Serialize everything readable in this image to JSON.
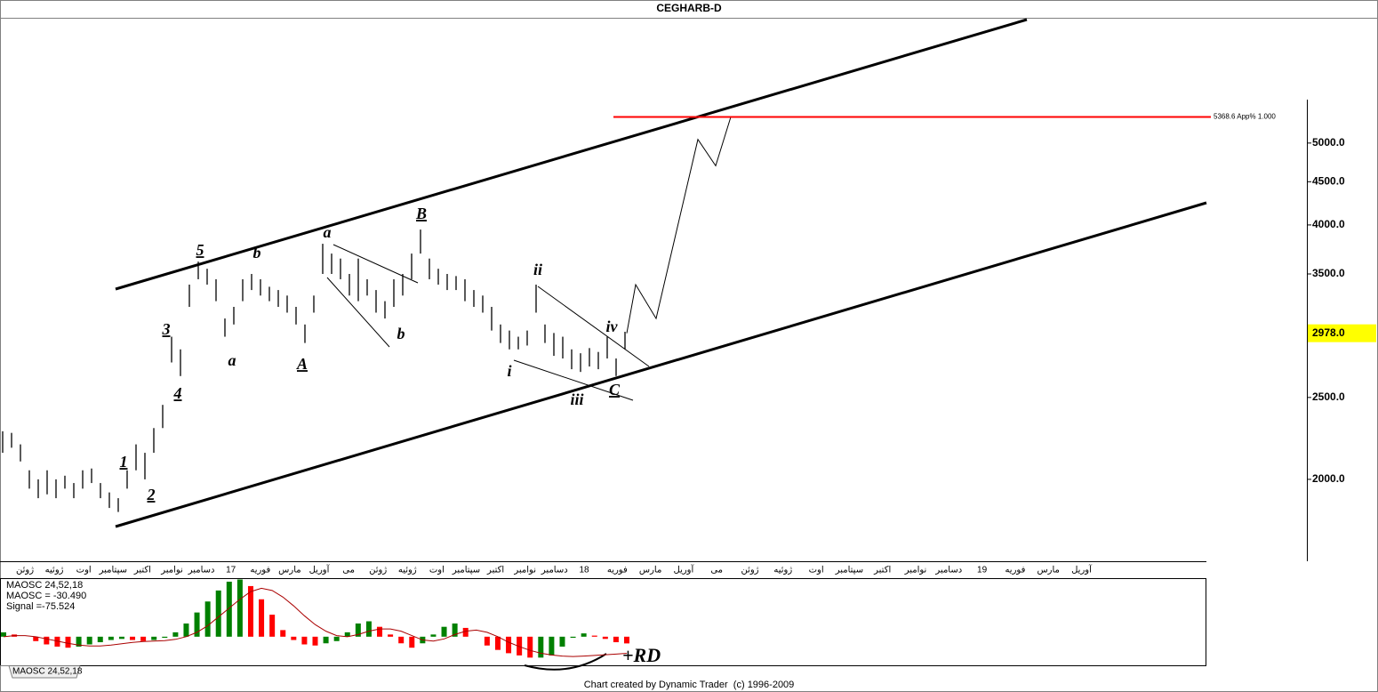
{
  "chart_data": [
    {
      "type": "ohlc",
      "title": "CEGHARB-D",
      "categories": [
        "ژوئن",
        "ژوئیه",
        "اوت",
        "سپتامبر",
        "اکتبر",
        "نوامبر",
        "دسامبر",
        "17",
        "فوریه",
        "مارس",
        "آوریل",
        "می",
        "ژوئن",
        "ژوئیه",
        "اوت",
        "سپتامبر",
        "اکتبر",
        "نوامبر",
        "دسامبر",
        "18",
        "فوریه",
        "مارس",
        "آوریل",
        "می",
        "ژوئن",
        "ژوئیه",
        "اوت",
        "سپتامبر",
        "اکتبر",
        "نوامبر",
        "دسامبر",
        "19",
        "فوریه",
        "مارس",
        "آوریل"
      ],
      "log_scale": true,
      "ylim": [
        1600,
        7000
      ],
      "yticks": [
        {
          "value": 2000,
          "label": "2000.0"
        },
        {
          "value": 2500,
          "label": "2500.0"
        },
        {
          "value": 3500,
          "label": "3500.0"
        },
        {
          "value": 4000,
          "label": "4000.0"
        },
        {
          "value": 4500,
          "label": "4500.0"
        },
        {
          "value": 5000,
          "label": "5000.0"
        }
      ],
      "color": "#000000",
      "high": [
        2280,
        2270,
        2200,
        2050,
        2000,
        2050,
        2000,
        2020,
        1980,
        2050,
        2060,
        1980,
        1930,
        1900,
        2050,
        2200,
        2150,
        2300,
        2450,
        2950,
        2850,
        3400,
        3620,
        3550,
        3450,
        3100,
        3200,
        3450,
        3500,
        3450,
        3380,
        3350,
        3300,
        3200,
        3050,
        3300,
        3800,
        3700,
        3650,
        3500,
        3650,
        3450,
        3350,
        3250,
        3450,
        3500,
        3700,
        3950,
        3650,
        3550,
        3500,
        3480,
        3450,
        3350,
        3300,
        3200,
        3050,
        3000,
        2950,
        3000,
        3400,
        3050,
        2980,
        2950,
        2850,
        2820,
        2860,
        2830,
        2950,
        2780,
        2990
      ],
      "low": [
        2150,
        2180,
        2100,
        1950,
        1900,
        1920,
        1900,
        1950,
        1900,
        1950,
        1980,
        1900,
        1850,
        1830,
        1950,
        2050,
        2000,
        2150,
        2300,
        2750,
        2650,
        3200,
        3450,
        3400,
        3250,
        2950,
        3050,
        3250,
        3350,
        3300,
        3250,
        3200,
        3150,
        3050,
        2900,
        3150,
        3500,
        3500,
        3450,
        3300,
        3250,
        3300,
        3150,
        3100,
        3200,
        3300,
        3450,
        3700,
        3450,
        3400,
        3350,
        3350,
        3250,
        3200,
        3150,
        3000,
        2900,
        2850,
        2850,
        2880,
        3150,
        2900,
        2800,
        2780,
        2700,
        2680,
        2720,
        2700,
        2780,
        2650,
        2850
      ],
      "projection": [
        2978,
        3400,
        3100,
        5050,
        4700,
        5368.6
      ],
      "last_price": {
        "value": 2978,
        "label": "2978.0"
      },
      "target": {
        "value": 5368.6,
        "label": "5368.6 App% 1.000",
        "color": "#ff0000"
      },
      "wave_labels": [
        "1",
        "2",
        "3",
        "4",
        "5",
        "a",
        "b",
        "A",
        "a",
        "b",
        "B",
        "i",
        "ii",
        "iii",
        "iv",
        "C"
      ]
    },
    {
      "type": "bar",
      "readouts": [
        "MAOSC 24,52,18",
        "MAOSC = -30.490",
        "Signal =-75.524"
      ],
      "ylim": [
        -130,
        262
      ],
      "values": [
        20,
        10,
        0,
        -20,
        -35,
        -45,
        -50,
        -45,
        -35,
        -25,
        -15,
        -10,
        -15,
        -20,
        -15,
        -5,
        20,
        60,
        110,
        160,
        210,
        250,
        260,
        230,
        170,
        100,
        30,
        -15,
        -35,
        -40,
        -30,
        -20,
        20,
        60,
        70,
        45,
        10,
        -30,
        -50,
        -30,
        10,
        45,
        60,
        40,
        0,
        -40,
        -60,
        -75,
        -85,
        -95,
        -95,
        -85,
        -45,
        -5,
        15,
        5,
        -10,
        -25,
        -30.49
      ],
      "signal": [
        0,
        5,
        5,
        0,
        -10,
        -20,
        -30,
        -38,
        -42,
        -42,
        -38,
        -32,
        -26,
        -22,
        -20,
        -18,
        -12,
        0,
        20,
        50,
        90,
        130,
        170,
        205,
        220,
        210,
        180,
        140,
        95,
        55,
        25,
        5,
        0,
        10,
        25,
        35,
        35,
        25,
        5,
        -15,
        -20,
        -10,
        10,
        25,
        30,
        20,
        0,
        -25,
        -45,
        -62,
        -75,
        -83,
        -88,
        -90,
        -88,
        -85,
        -82,
        -79,
        -75.524
      ],
      "colors": {
        "up": "#008000",
        "down": "#ff0000"
      },
      "signal_color": "#aa0000",
      "annotation": "+RD",
      "tab": "MAOSC 24,52,18"
    }
  ],
  "footer": "Chart created by Dynamic Trader  (c) 1996-2009"
}
